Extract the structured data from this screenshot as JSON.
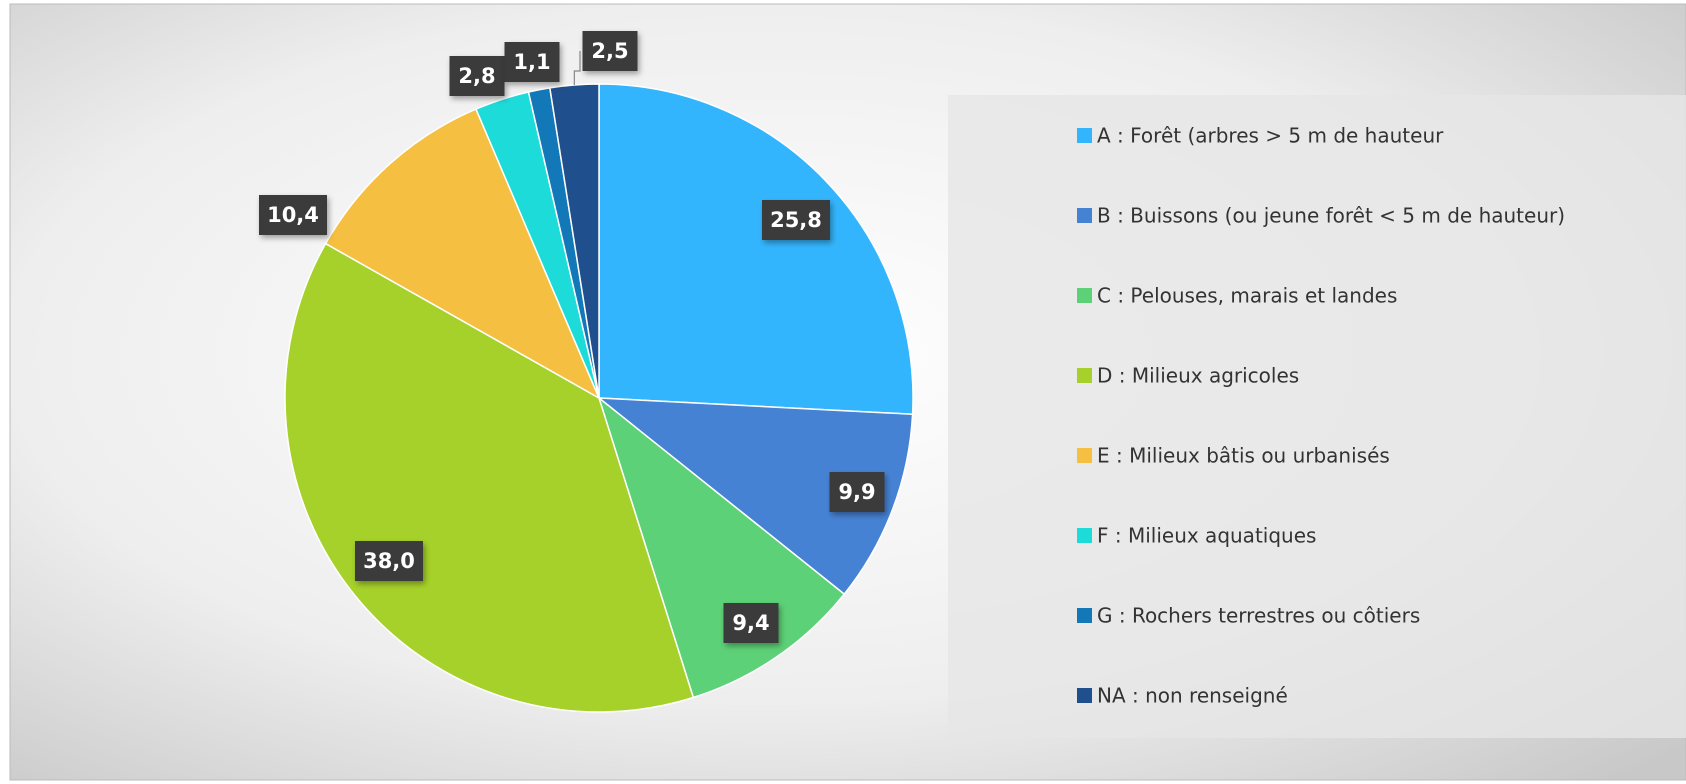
{
  "chart_data": {
    "type": "pie",
    "categories": [
      "A : Forêt (arbres > 5 m de hauteur",
      "B : Buissons (ou jeune forêt < 5 m de hauteur)",
      "C : Pelouses, marais et landes",
      "D : Milieux agricoles",
      "E : Milieux bâtis ou urbanisés",
      "F : Milieux aquatiques",
      "G : Rochers terrestres ou côtiers",
      "NA : non renseigné"
    ],
    "values": [
      25.8,
      9.9,
      9.4,
      38.0,
      10.4,
      2.8,
      1.1,
      2.5
    ],
    "value_labels": [
      "25,8",
      "9,9",
      "9,4",
      "38,0",
      "10,4",
      "2,8",
      "1,1",
      "2,5"
    ],
    "colors": [
      "#33b5fd",
      "#4682d4",
      "#5dd177",
      "#a6d12a",
      "#f5bf41",
      "#1ddbd9",
      "#1378b8",
      "#1f4f8c"
    ],
    "legend": "right"
  }
}
